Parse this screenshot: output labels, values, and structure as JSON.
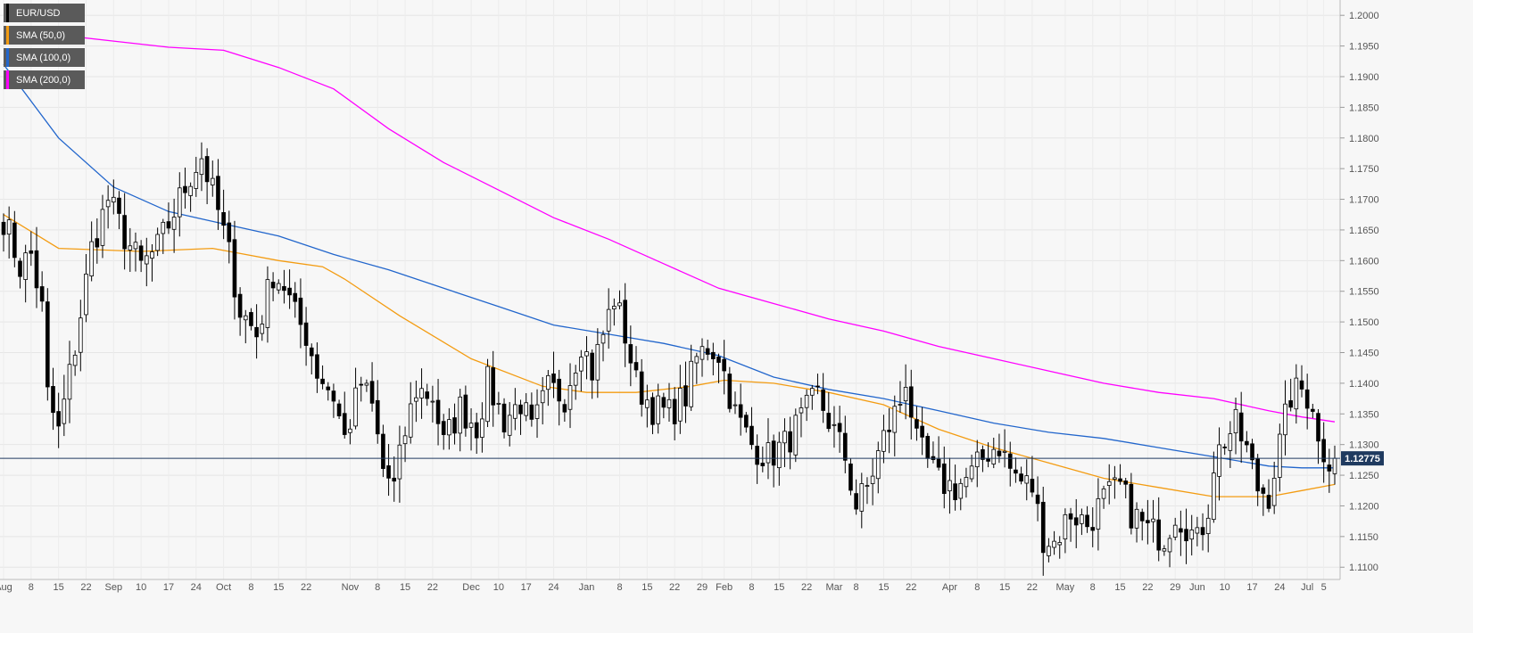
{
  "chart_data": {
    "type": "candlestick",
    "symbol": "EUR/USD",
    "yaxis": {
      "min": 1.108,
      "max": 1.2025,
      "ticks": [
        "1.2000",
        "1.1950",
        "1.1900",
        "1.1850",
        "1.1800",
        "1.1750",
        "1.1700",
        "1.1650",
        "1.1600",
        "1.1550",
        "1.1500",
        "1.1450",
        "1.1400",
        "1.1350",
        "1.1300",
        "1.1250",
        "1.1200",
        "1.1150",
        "1.1100"
      ]
    },
    "xaxis": {
      "ticks": [
        {
          "i": 0,
          "label": "Aug"
        },
        {
          "i": 5,
          "label": "8"
        },
        {
          "i": 10,
          "label": "15"
        },
        {
          "i": 15,
          "label": "22"
        },
        {
          "i": 20,
          "label": "Sep"
        },
        {
          "i": 25,
          "label": "10"
        },
        {
          "i": 30,
          "label": "17"
        },
        {
          "i": 35,
          "label": "24"
        },
        {
          "i": 40,
          "label": "Oct"
        },
        {
          "i": 45,
          "label": "8"
        },
        {
          "i": 50,
          "label": "15"
        },
        {
          "i": 55,
          "label": "22"
        },
        {
          "i": 63,
          "label": "Nov"
        },
        {
          "i": 68,
          "label": "8"
        },
        {
          "i": 73,
          "label": "15"
        },
        {
          "i": 78,
          "label": "22"
        },
        {
          "i": 85,
          "label": "Dec"
        },
        {
          "i": 90,
          "label": "10"
        },
        {
          "i": 95,
          "label": "17"
        },
        {
          "i": 100,
          "label": "24"
        },
        {
          "i": 106,
          "label": "Jan"
        },
        {
          "i": 112,
          "label": "8"
        },
        {
          "i": 117,
          "label": "15"
        },
        {
          "i": 122,
          "label": "22"
        },
        {
          "i": 127,
          "label": "29"
        },
        {
          "i": 131,
          "label": "Feb"
        },
        {
          "i": 136,
          "label": "8"
        },
        {
          "i": 141,
          "label": "15"
        },
        {
          "i": 146,
          "label": "22"
        },
        {
          "i": 151,
          "label": "Mar"
        },
        {
          "i": 155,
          "label": "8"
        },
        {
          "i": 160,
          "label": "15"
        },
        {
          "i": 165,
          "label": "22"
        },
        {
          "i": 172,
          "label": "Apr"
        },
        {
          "i": 177,
          "label": "8"
        },
        {
          "i": 182,
          "label": "15"
        },
        {
          "i": 187,
          "label": "22"
        },
        {
          "i": 193,
          "label": "May"
        },
        {
          "i": 198,
          "label": "8"
        },
        {
          "i": 203,
          "label": "15"
        },
        {
          "i": 208,
          "label": "22"
        },
        {
          "i": 213,
          "label": "29"
        },
        {
          "i": 217,
          "label": "Jun"
        },
        {
          "i": 222,
          "label": "10"
        },
        {
          "i": 227,
          "label": "17"
        },
        {
          "i": 232,
          "label": "24"
        },
        {
          "i": 237,
          "label": "Jul"
        },
        {
          "i": 240,
          "label": "5"
        }
      ],
      "count": 243
    },
    "anchors": [
      [
        0,
        1.167
      ],
      [
        3,
        1.159
      ],
      [
        5,
        1.161
      ],
      [
        7,
        1.152
      ],
      [
        8,
        1.138
      ],
      [
        10,
        1.132
      ],
      [
        13,
        1.146
      ],
      [
        16,
        1.162
      ],
      [
        19,
        1.17
      ],
      [
        22,
        1.164
      ],
      [
        25,
        1.159
      ],
      [
        28,
        1.162
      ],
      [
        31,
        1.168
      ],
      [
        34,
        1.174
      ],
      [
        36,
        1.177
      ],
      [
        39,
        1.168
      ],
      [
        41,
        1.161
      ],
      [
        43,
        1.152
      ],
      [
        46,
        1.148
      ],
      [
        49,
        1.158
      ],
      [
        51,
        1.156
      ],
      [
        53,
        1.151
      ],
      [
        55,
        1.148
      ],
      [
        57,
        1.142
      ],
      [
        60,
        1.138
      ],
      [
        62,
        1.131
      ],
      [
        65,
        1.14
      ],
      [
        67,
        1.136
      ],
      [
        69,
        1.126
      ],
      [
        71,
        1.123
      ],
      [
        73,
        1.132
      ],
      [
        75,
        1.139
      ],
      [
        78,
        1.138
      ],
      [
        80,
        1.13
      ],
      [
        83,
        1.136
      ],
      [
        86,
        1.133
      ],
      [
        88,
        1.14
      ],
      [
        91,
        1.134
      ],
      [
        94,
        1.137
      ],
      [
        96,
        1.132
      ],
      [
        99,
        1.139
      ],
      [
        102,
        1.138
      ],
      [
        105,
        1.147
      ],
      [
        107,
        1.142
      ],
      [
        109,
        1.148
      ],
      [
        111,
        1.154
      ],
      [
        113,
        1.148
      ],
      [
        115,
        1.14
      ],
      [
        118,
        1.136
      ],
      [
        121,
        1.135
      ],
      [
        124,
        1.138
      ],
      [
        126,
        1.144
      ],
      [
        128,
        1.146
      ],
      [
        130,
        1.145
      ],
      [
        133,
        1.135
      ],
      [
        136,
        1.13
      ],
      [
        139,
        1.128
      ],
      [
        142,
        1.13
      ],
      [
        145,
        1.134
      ],
      [
        148,
        1.138
      ],
      [
        151,
        1.132
      ],
      [
        153,
        1.128
      ],
      [
        155,
        1.12
      ],
      [
        157,
        1.123
      ],
      [
        160,
        1.131
      ],
      [
        163,
        1.137
      ],
      [
        164,
        1.141
      ],
      [
        166,
        1.13
      ],
      [
        168,
        1.127
      ],
      [
        170,
        1.124
      ],
      [
        173,
        1.123
      ],
      [
        176,
        1.125
      ],
      [
        179,
        1.129
      ],
      [
        181,
        1.13
      ],
      [
        183,
        1.126
      ],
      [
        185,
        1.124
      ],
      [
        187,
        1.123
      ],
      [
        189,
        1.115
      ],
      [
        191,
        1.114
      ],
      [
        194,
        1.119
      ],
      [
        197,
        1.117
      ],
      [
        200,
        1.121
      ],
      [
        203,
        1.123
      ],
      [
        205,
        1.119
      ],
      [
        208,
        1.116
      ],
      [
        211,
        1.115
      ],
      [
        213,
        1.119
      ],
      [
        215,
        1.117
      ],
      [
        217,
        1.114
      ],
      [
        219,
        1.12
      ],
      [
        220,
        1.127
      ],
      [
        222,
        1.131
      ],
      [
        224,
        1.133
      ],
      [
        226,
        1.129
      ],
      [
        228,
        1.123
      ],
      [
        230,
        1.122
      ],
      [
        232,
        1.13
      ],
      [
        234,
        1.138
      ],
      [
        236,
        1.139
      ],
      [
        238,
        1.137
      ],
      [
        239,
        1.13
      ],
      [
        241,
        1.128
      ],
      [
        242,
        1.12775
      ]
    ],
    "sma50": [
      [
        0,
        1.1675
      ],
      [
        10,
        1.162
      ],
      [
        25,
        1.1615
      ],
      [
        38,
        1.162
      ],
      [
        50,
        1.16
      ],
      [
        58,
        1.159
      ],
      [
        62,
        1.157
      ],
      [
        72,
        1.151
      ],
      [
        85,
        1.144
      ],
      [
        98,
        1.1395
      ],
      [
        106,
        1.1385
      ],
      [
        115,
        1.1385
      ],
      [
        125,
        1.1395
      ],
      [
        131,
        1.1405
      ],
      [
        140,
        1.14
      ],
      [
        150,
        1.1385
      ],
      [
        160,
        1.1365
      ],
      [
        170,
        1.1325
      ],
      [
        180,
        1.1295
      ],
      [
        190,
        1.127
      ],
      [
        200,
        1.1245
      ],
      [
        210,
        1.123
      ],
      [
        220,
        1.1215
      ],
      [
        230,
        1.1215
      ],
      [
        236,
        1.1225
      ],
      [
        242,
        1.1235
      ]
    ],
    "sma100": [
      [
        0,
        1.192
      ],
      [
        10,
        1.18
      ],
      [
        20,
        1.172
      ],
      [
        30,
        1.168
      ],
      [
        40,
        1.166
      ],
      [
        50,
        1.164
      ],
      [
        60,
        1.161
      ],
      [
        70,
        1.1585
      ],
      [
        80,
        1.1555
      ],
      [
        90,
        1.1525
      ],
      [
        100,
        1.1495
      ],
      [
        110,
        1.148
      ],
      [
        120,
        1.1465
      ],
      [
        130,
        1.1445
      ],
      [
        140,
        1.141
      ],
      [
        150,
        1.139
      ],
      [
        160,
        1.1375
      ],
      [
        170,
        1.1355
      ],
      [
        180,
        1.1335
      ],
      [
        190,
        1.132
      ],
      [
        200,
        1.131
      ],
      [
        210,
        1.1295
      ],
      [
        220,
        1.128
      ],
      [
        230,
        1.1265
      ],
      [
        236,
        1.1262
      ],
      [
        242,
        1.1262
      ]
    ],
    "sma200": [
      [
        0,
        1.1978
      ],
      [
        10,
        1.1968
      ],
      [
        20,
        1.1958
      ],
      [
        30,
        1.1948
      ],
      [
        40,
        1.1943
      ],
      [
        50,
        1.1915
      ],
      [
        60,
        1.188
      ],
      [
        70,
        1.1815
      ],
      [
        80,
        1.176
      ],
      [
        90,
        1.1715
      ],
      [
        100,
        1.167
      ],
      [
        110,
        1.1635
      ],
      [
        120,
        1.1595
      ],
      [
        130,
        1.1555
      ],
      [
        140,
        1.153
      ],
      [
        150,
        1.1505
      ],
      [
        160,
        1.1485
      ],
      [
        170,
        1.146
      ],
      [
        180,
        1.144
      ],
      [
        190,
        1.142
      ],
      [
        200,
        1.14
      ],
      [
        210,
        1.1385
      ],
      [
        220,
        1.1375
      ],
      [
        230,
        1.1355
      ],
      [
        236,
        1.1345
      ],
      [
        242,
        1.1337
      ]
    ],
    "last_price": "1.12775",
    "legend": [
      {
        "label": "EUR/USD",
        "color": "#000000"
      },
      {
        "label": "SMA (50,0)",
        "color": "#f39c12"
      },
      {
        "label": "SMA (100,0)",
        "color": "#2266cc"
      },
      {
        "label": "SMA (200,0)",
        "color": "#ff00ff"
      }
    ],
    "grid": true,
    "legend_position": "top-left"
  }
}
